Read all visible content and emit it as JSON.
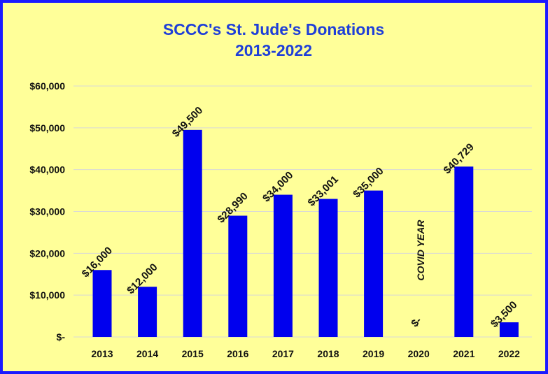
{
  "colors": {
    "background": "#ffff99",
    "border": "#1a1aff",
    "bar": "#0000ee",
    "title": "#1f3fd8",
    "grid": "#d8d8d8"
  },
  "chart_data": {
    "type": "bar",
    "title_line1": "SCCC's St. Jude's Donations",
    "title_line2": "2013-2022",
    "xlabel": "",
    "ylabel": "",
    "ylim": [
      0,
      60000
    ],
    "grid": true,
    "y_ticks": [
      {
        "value": 0,
        "label": "$-"
      },
      {
        "value": 10000,
        "label": "$10,000"
      },
      {
        "value": 20000,
        "label": "$20,000"
      },
      {
        "value": 30000,
        "label": "$30,000"
      },
      {
        "value": 40000,
        "label": "$40,000"
      },
      {
        "value": 50000,
        "label": "$50,000"
      },
      {
        "value": 60000,
        "label": "$60,000"
      }
    ],
    "categories": [
      "2013",
      "2014",
      "2015",
      "2016",
      "2017",
      "2018",
      "2019",
      "2020",
      "2021",
      "2022"
    ],
    "values": [
      16000,
      12000,
      49500,
      28990,
      34000,
      33001,
      35000,
      0,
      40729,
      3500
    ],
    "data_labels": [
      "$16,000",
      "$12,000",
      "$49,500",
      "$28,990",
      "$34,000",
      "$33,001",
      "$35,000",
      "$-",
      "$40,729",
      "$3,500"
    ],
    "annotation": {
      "category": "2020",
      "text": "COVID YEAR"
    }
  }
}
